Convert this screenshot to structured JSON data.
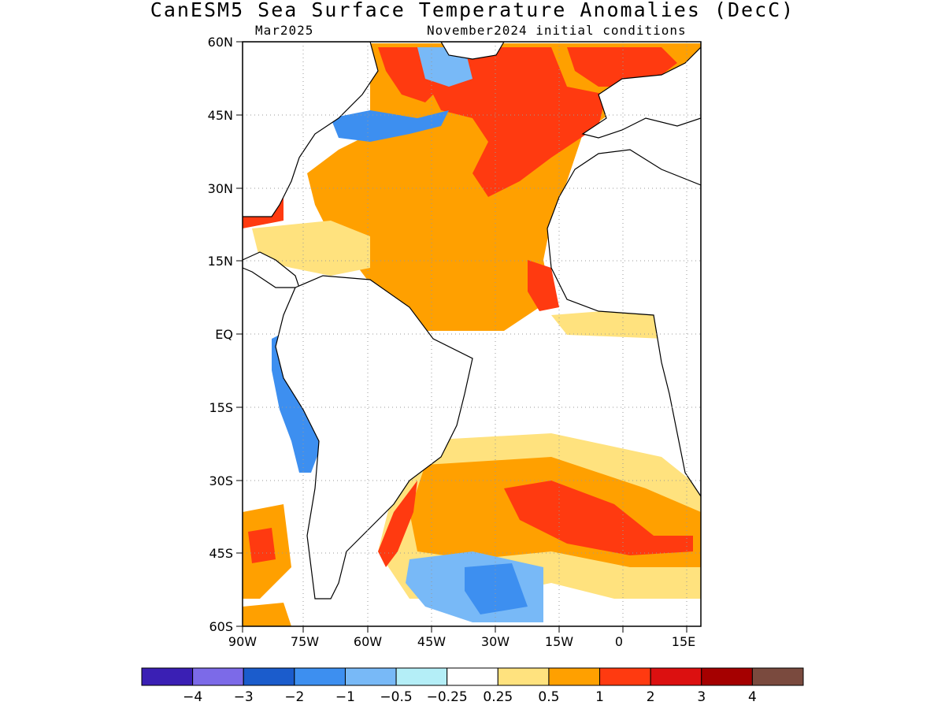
{
  "title": "CanESM5 Sea Surface Temperature Anomalies (DecC)",
  "subtitle_left": "Mar2025",
  "subtitle_right": "November2024 initial conditions",
  "lat_labels": [
    "60N",
    "45N",
    "30N",
    "15N",
    "EQ",
    "15S",
    "30S",
    "45S",
    "60S"
  ],
  "lon_labels": [
    "90W",
    "75W",
    "60W",
    "45W",
    "30W",
    "15W",
    "0",
    "15E"
  ],
  "colorbar": {
    "colors": [
      "#3a1fb4",
      "#7c6ae8",
      "#1b5ccc",
      "#3d8ff0",
      "#78b9f7",
      "#b4eef7",
      "#ffffff",
      "#ffe27e",
      "#ffa000",
      "#ff3a10",
      "#dc1010",
      "#a50000",
      "#7a4a3e"
    ],
    "labels": [
      "-4",
      "-3",
      "-2",
      "-1",
      "-0.5",
      "-0.25",
      "0.25",
      "0.5",
      "1",
      "2",
      "3",
      "4"
    ]
  },
  "colors": {
    "land": "#ffffff",
    "coast": "#000000",
    "grid": "#999999"
  }
}
